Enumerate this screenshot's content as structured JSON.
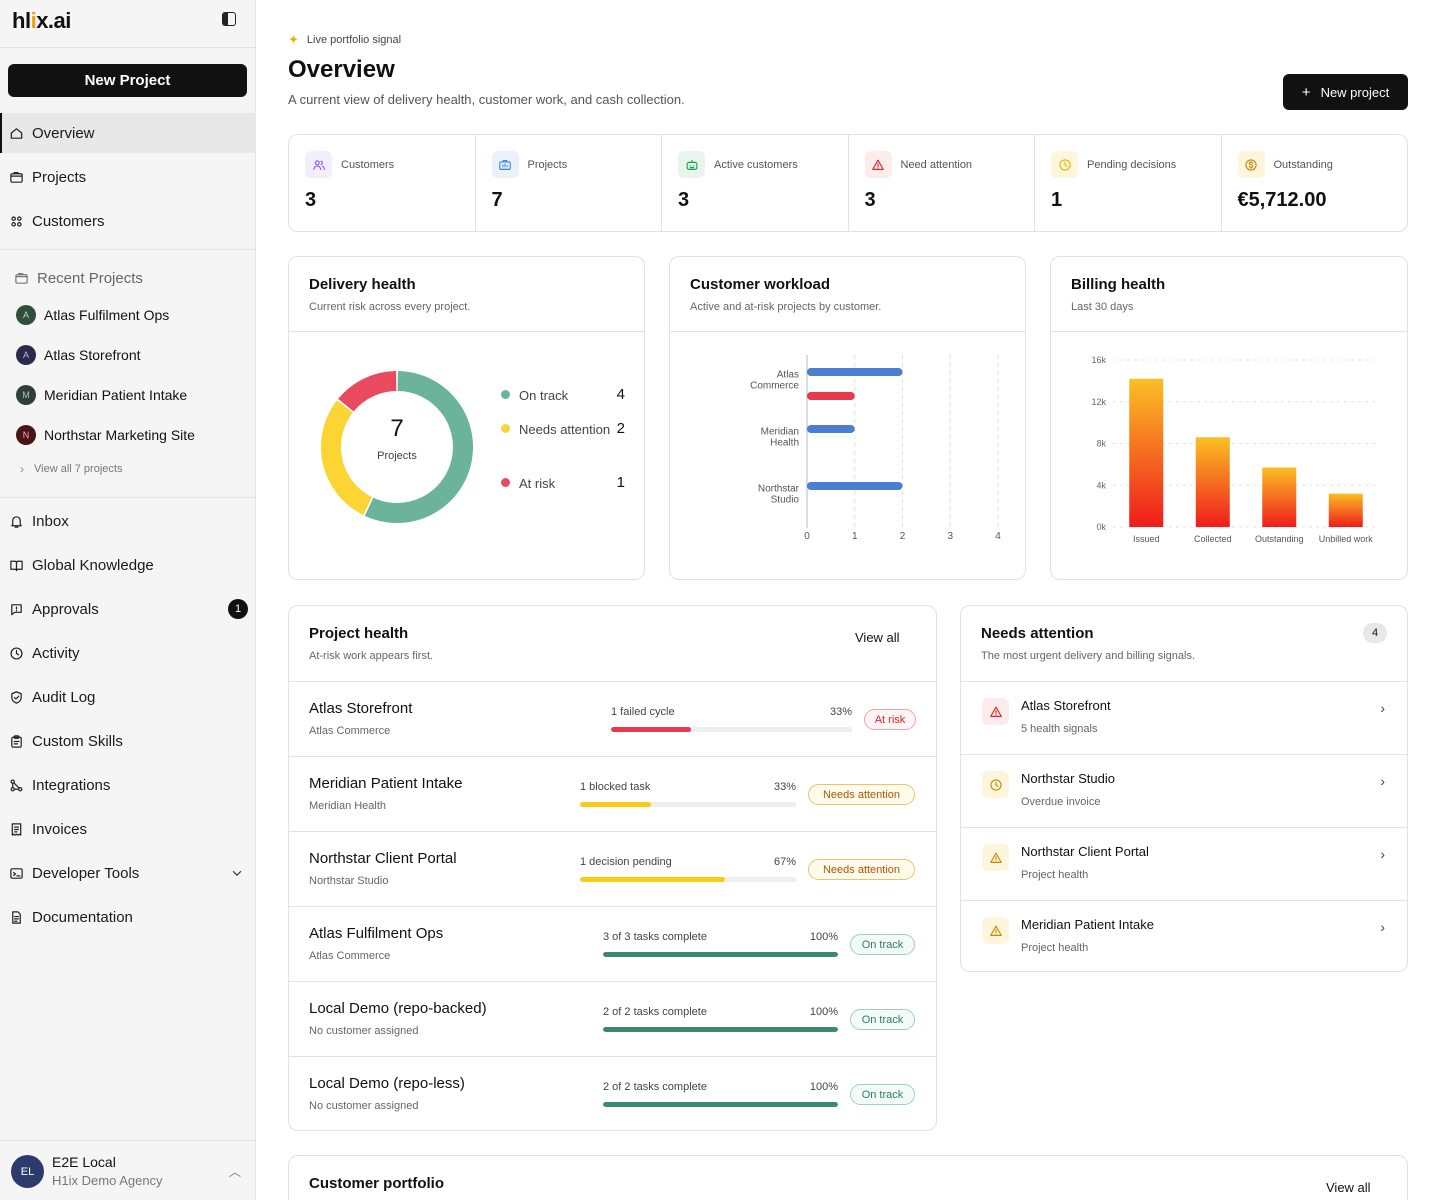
{
  "sidebar": {
    "logo": {
      "a": "hl",
      "b": "i",
      "c": "x.ai"
    },
    "new_project": "New Project",
    "nav_top": [
      {
        "label": "Overview",
        "icon": "home-icon"
      },
      {
        "label": "Projects",
        "icon": "folder-icon"
      },
      {
        "label": "Customers",
        "icon": "users-icon"
      }
    ],
    "recent_header": "Recent Projects",
    "recent": [
      {
        "label": "Atlas Fulfilment Ops",
        "initial": "A",
        "bg": "#2f4f3a",
        "fg": "#b9d6c2"
      },
      {
        "label": "Atlas Storefront",
        "initial": "A",
        "bg": "#2c2a4a",
        "fg": "#b9b3f0"
      },
      {
        "label": "Meridian Patient Intake",
        "initial": "M",
        "bg": "#2f3e3a",
        "fg": "#a7c4b8"
      },
      {
        "label": "Northstar Marketing Site",
        "initial": "N",
        "bg": "#4a1414",
        "fg": "#f3b0b0"
      }
    ],
    "view_all": "View all 7 projects",
    "nav_bottom": [
      {
        "label": "Inbox",
        "icon": "bell-icon"
      },
      {
        "label": "Global Knowledge",
        "icon": "book-icon"
      },
      {
        "label": "Approvals",
        "icon": "chat-icon",
        "badge": "1"
      },
      {
        "label": "Activity",
        "icon": "clock-icon"
      },
      {
        "label": "Audit Log",
        "icon": "shield-icon"
      },
      {
        "label": "Custom Skills",
        "icon": "clipboard-icon"
      },
      {
        "label": "Integrations",
        "icon": "integrations-icon"
      },
      {
        "label": "Invoices",
        "icon": "invoice-icon"
      },
      {
        "label": "Developer Tools",
        "icon": "terminal-icon"
      },
      {
        "label": "Documentation",
        "icon": "doc-icon"
      }
    ],
    "user": {
      "initials": "EL",
      "name": "E2E Local",
      "org": "H1ix Demo Agency"
    }
  },
  "header": {
    "eyebrow": "Live portfolio signal",
    "title": "Overview",
    "subtitle": "A current view of delivery health, customer work, and cash collection.",
    "new_project": "New project"
  },
  "stats": [
    {
      "label": "Customers",
      "value": "3",
      "bg": "#f3eefb",
      "color": "#8b5cf6"
    },
    {
      "label": "Projects",
      "value": "7",
      "bg": "#eaf1fb",
      "color": "#3b82f6"
    },
    {
      "label": "Active customers",
      "value": "3",
      "bg": "#e8f5ee",
      "color": "#16a34a"
    },
    {
      "label": "Need attention",
      "value": "3",
      "bg": "#fdecec",
      "color": "#dc2626"
    },
    {
      "label": "Pending decisions",
      "value": "1",
      "bg": "#fdf6dc",
      "color": "#eab308"
    },
    {
      "label": "Outstanding",
      "value": "€5,712.00",
      "bg": "#fdf6dc",
      "color": "#ca8a04"
    }
  ],
  "delivery": {
    "title": "Delivery health",
    "subtitle": "Current risk across every project.",
    "center_value": "7",
    "center_label": "Projects"
  },
  "workload": {
    "title": "Customer workload",
    "subtitle": "Active and at-risk projects by customer."
  },
  "billing": {
    "title": "Billing health",
    "subtitle": "Last 30 days"
  },
  "chart_data": [
    {
      "type": "pie",
      "categories": [
        "On track",
        "Needs attention",
        "At risk"
      ],
      "values": [
        4,
        2,
        1
      ],
      "colors": [
        "#6bb39a",
        "#fcd535",
        "#e84a5f"
      ]
    },
    {
      "type": "bar",
      "orientation": "horizontal",
      "categories": [
        "Atlas\nCommerce",
        "Meridian\nHealth",
        "Northstar\nStudio"
      ],
      "series": [
        {
          "values": [
            2,
            1,
            2
          ],
          "color": "#4a7fd0"
        },
        {
          "values": [
            1,
            0,
            0
          ],
          "color": "#e8394f"
        }
      ],
      "xlim": [
        0,
        4
      ],
      "xticks": [
        "0",
        "1",
        "2",
        "3",
        "4"
      ]
    },
    {
      "type": "bar",
      "categories": [
        "Issued",
        "Collected",
        "Outstanding",
        "Unbilled work"
      ],
      "values": [
        14200,
        8600,
        5700,
        3200
      ],
      "ylim": [
        0,
        16000
      ],
      "yticks": [
        {
          "v": 0,
          "t": "0k"
        },
        {
          "v": 4000,
          "t": "4k"
        },
        {
          "v": 8000,
          "t": "8k"
        },
        {
          "v": 12000,
          "t": "12k"
        },
        {
          "v": 16000,
          "t": "16k"
        }
      ],
      "gradient": [
        "#fbbf24",
        "#ef1c1c"
      ]
    }
  ],
  "project_health": {
    "title": "Project health",
    "subtitle": "At-risk work appears first.",
    "view_all": "View all",
    "rows": [
      {
        "name": "Atlas Storefront",
        "client": "Atlas Commerce",
        "progress_label": "1 failed cycle",
        "pct": "33%",
        "fill": 0.33,
        "fill_color": "#e8394f",
        "status": "At risk",
        "st_color": "#dc2626",
        "st_border": "#f1a3ad",
        "st_bg": "#fff5f6"
      },
      {
        "name": "Meridian Patient Intake",
        "client": "Meridian Health",
        "progress_label": "1 blocked task",
        "pct": "33%",
        "fill": 0.33,
        "fill_color": "#facc15",
        "status": "Needs attention",
        "st_color": "#b45309",
        "st_border": "#e9c46a",
        "st_bg": "#fffbeb"
      },
      {
        "name": "Northstar Client Portal",
        "client": "Northstar Studio",
        "progress_label": "1 decision pending",
        "pct": "67%",
        "fill": 0.67,
        "fill_color": "#facc15",
        "status": "Needs attention",
        "st_color": "#b45309",
        "st_border": "#e9c46a",
        "st_bg": "#fffbeb"
      },
      {
        "name": "Atlas Fulfilment Ops",
        "client": "Atlas Commerce",
        "progress_label": "3 of 3 tasks complete",
        "pct": "100%",
        "fill": 1.0,
        "fill_color": "#3c8a6b",
        "status": "On track",
        "st_color": "#2f7d5f",
        "st_border": "#9fd0bb",
        "st_bg": "#f3fbf7"
      },
      {
        "name": "Local Demo (repo-backed)",
        "client": "No customer assigned",
        "progress_label": "2 of 2 tasks complete",
        "pct": "100%",
        "fill": 1.0,
        "fill_color": "#3c8a6b",
        "status": "On track",
        "st_color": "#2f7d5f",
        "st_border": "#9fd0bb",
        "st_bg": "#f3fbf7"
      },
      {
        "name": "Local Demo (repo-less)",
        "client": "No customer assigned",
        "progress_label": "2 of 2 tasks complete",
        "pct": "100%",
        "fill": 1.0,
        "fill_color": "#3c8a6b",
        "status": "On track",
        "st_color": "#2f7d5f",
        "st_border": "#9fd0bb",
        "st_bg": "#f3fbf7"
      }
    ]
  },
  "needs_attention": {
    "title": "Needs attention",
    "subtitle": "The most urgent delivery and billing signals.",
    "count": "4",
    "rows": [
      {
        "title": "Atlas Storefront",
        "sub": "5 health signals",
        "icon": "alert-triangle-icon",
        "color": "#dc2626",
        "bg": "#fdecec"
      },
      {
        "title": "Northstar Studio",
        "sub": "Overdue invoice",
        "icon": "clock-icon",
        "color": "#ca8a04",
        "bg": "#fdf6dc"
      },
      {
        "title": "Northstar Client Portal",
        "sub": "Project health",
        "icon": "alert-triangle-icon",
        "color": "#ca8a04",
        "bg": "#fdf6dc"
      },
      {
        "title": "Meridian Patient Intake",
        "sub": "Project health",
        "icon": "alert-triangle-icon",
        "color": "#ca8a04",
        "bg": "#fdf6dc"
      }
    ]
  },
  "portfolio": {
    "title": "Customer portfolio",
    "view_all": "View all"
  }
}
